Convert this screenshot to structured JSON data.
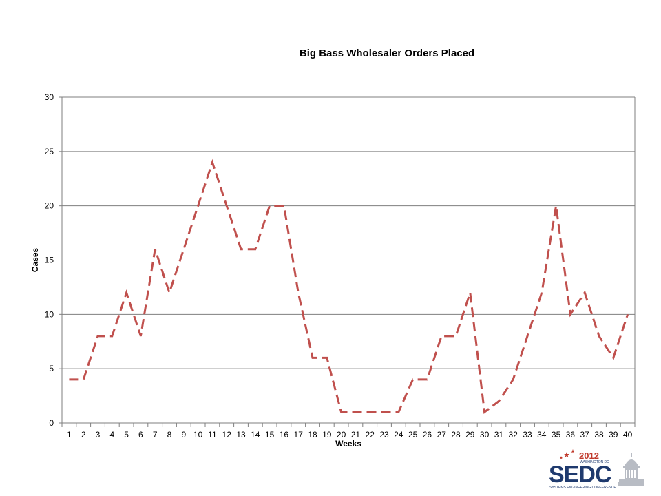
{
  "chart_data": {
    "type": "line",
    "title": "Big Bass Wholesaler Orders Placed",
    "xlabel": "Weeks",
    "ylabel": "Cases",
    "x": [
      1,
      2,
      3,
      4,
      5,
      6,
      7,
      8,
      9,
      10,
      11,
      12,
      13,
      14,
      15,
      16,
      17,
      18,
      19,
      20,
      21,
      22,
      23,
      24,
      25,
      26,
      27,
      28,
      29,
      30,
      31,
      32,
      33,
      34,
      35,
      36,
      37,
      38,
      39,
      40
    ],
    "series": [
      {
        "name": "",
        "values": [
          4,
          4,
          8,
          8,
          12,
          8,
          16,
          12,
          16,
          20,
          24,
          20,
          16,
          16,
          20,
          20,
          12,
          6,
          6,
          1,
          1,
          1,
          1,
          1,
          4,
          4,
          8,
          8,
          12,
          1,
          2,
          4,
          8,
          12,
          20,
          10,
          12,
          8,
          6,
          10
        ],
        "color": "#c0504d",
        "dashed": true
      }
    ],
    "ylim": [
      0,
      30
    ],
    "yticks": [
      0,
      5,
      10,
      15,
      20,
      25,
      30
    ],
    "grid": true,
    "legend": "none"
  },
  "logo": {
    "year": "2012",
    "city": "WASHINGTON DC",
    "acronym": "SEDC",
    "subtitle": "SYSTEMS ENGINEERING CONFERENCE",
    "colors": {
      "navy": "#1f3a6e",
      "red": "#c0392b"
    }
  }
}
